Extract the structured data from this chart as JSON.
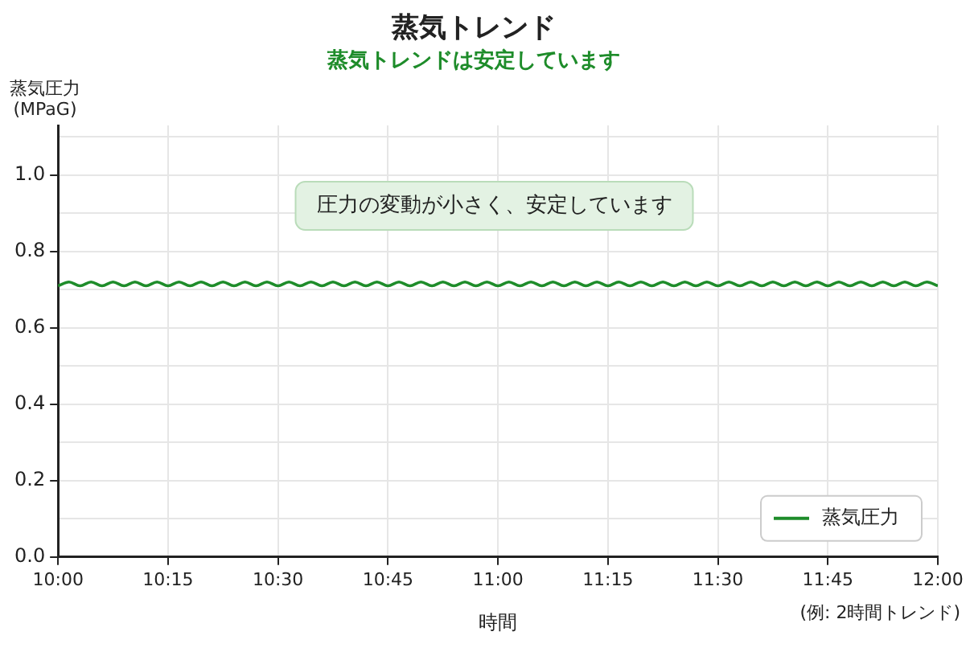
{
  "chart_data": {
    "type": "line",
    "title": "蒸気トレンド",
    "subtitle": "蒸気トレンドは安定しています",
    "xlabel": "時間",
    "ylabel": "蒸気圧力\n(MPaG)",
    "annotations": [
      "圧力の変動が小さく、安定しています",
      "(例: 2時間トレンド)"
    ],
    "x": [
      10,
      10.025,
      10.05,
      10.075,
      10.1,
      10.125,
      10.15,
      10.175,
      10.2,
      10.225,
      10.25,
      10.275,
      10.3,
      10.325,
      10.35,
      10.375,
      10.4,
      10.425,
      10.45,
      10.475,
      10.5,
      10.525,
      10.55,
      10.575,
      10.6,
      10.625,
      10.65,
      10.675,
      10.7,
      10.725,
      10.75,
      10.775,
      10.8,
      10.825,
      10.85,
      10.875,
      10.9,
      10.925,
      10.95,
      10.975,
      11,
      11.025,
      11.05,
      11.075,
      11.1,
      11.125,
      11.15,
      11.175,
      11.2,
      11.225,
      11.25,
      11.275,
      11.3,
      11.325,
      11.35,
      11.375,
      11.4,
      11.425,
      11.45,
      11.475,
      11.5,
      11.525,
      11.55,
      11.575,
      11.6,
      11.625,
      11.65,
      11.675,
      11.7,
      11.725,
      11.75,
      11.775,
      11.8,
      11.825,
      11.85,
      11.875,
      11.9,
      11.925,
      11.95,
      11.975,
      12
    ],
    "series": [
      {
        "name": "蒸気圧力",
        "color": "#1e8c2a",
        "values": [
          0.71,
          0.72,
          0.71,
          0.72,
          0.71,
          0.72,
          0.71,
          0.72,
          0.71,
          0.72,
          0.71,
          0.72,
          0.71,
          0.72,
          0.71,
          0.72,
          0.71,
          0.72,
          0.71,
          0.72,
          0.71,
          0.72,
          0.71,
          0.72,
          0.71,
          0.72,
          0.71,
          0.72,
          0.71,
          0.72,
          0.71,
          0.72,
          0.71,
          0.72,
          0.71,
          0.72,
          0.71,
          0.72,
          0.71,
          0.72,
          0.71,
          0.72,
          0.71,
          0.72,
          0.71,
          0.72,
          0.71,
          0.72,
          0.71,
          0.72,
          0.71,
          0.72,
          0.71,
          0.72,
          0.71,
          0.72,
          0.71,
          0.72,
          0.71,
          0.72,
          0.71,
          0.72,
          0.71,
          0.72,
          0.71,
          0.72,
          0.71,
          0.72,
          0.71,
          0.72,
          0.71,
          0.72,
          0.71,
          0.72,
          0.71,
          0.72,
          0.71,
          0.72,
          0.71,
          0.72,
          0.71
        ]
      }
    ],
    "xlim": [
      10,
      12
    ],
    "xticks": [
      {
        "value": 10,
        "label": "10:00"
      },
      {
        "value": 10.25,
        "label": "10:15"
      },
      {
        "value": 10.5,
        "label": "10:30"
      },
      {
        "value": 10.75,
        "label": "10:45"
      },
      {
        "value": 11,
        "label": "11:00"
      },
      {
        "value": 11.25,
        "label": "11:15"
      },
      {
        "value": 11.5,
        "label": "11:30"
      },
      {
        "value": 11.75,
        "label": "11:45"
      },
      {
        "value": 12,
        "label": "12:00"
      }
    ],
    "ylim": [
      0,
      1.13
    ],
    "yticks": [
      {
        "value": 0,
        "label": "0.0"
      },
      {
        "value": 0.1,
        "label": null
      },
      0.2,
      {
        "value": 0.3,
        "label": null
      },
      0.4,
      {
        "value": 0.5,
        "label": null
      },
      0.6,
      {
        "value": 0.7,
        "label": null
      },
      0.8,
      {
        "value": 0.9,
        "label": null
      },
      {
        "value": 1,
        "label": "1.0"
      },
      {
        "value": 1.1,
        "label": null
      }
    ],
    "grid": true,
    "legend": "bottom right",
    "marker": "none",
    "line_style": "solid"
  }
}
